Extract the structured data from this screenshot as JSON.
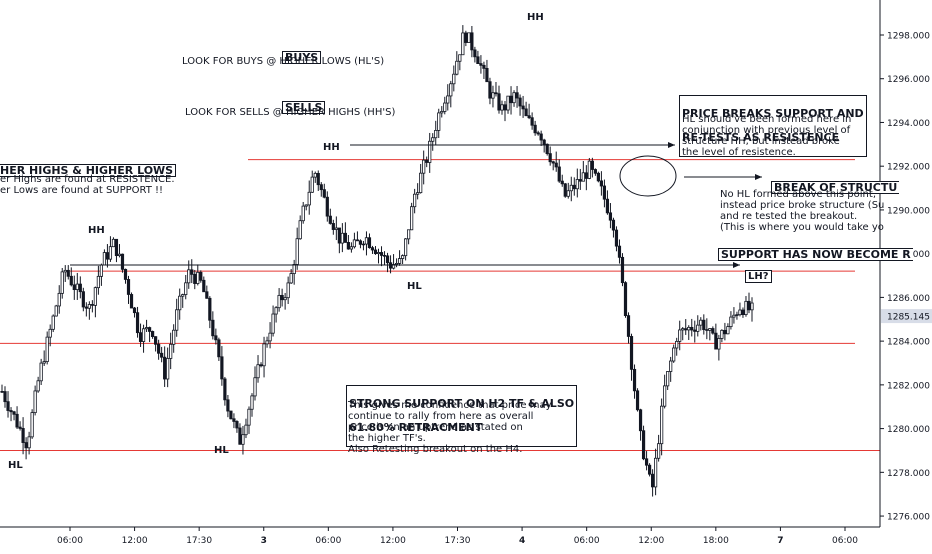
{
  "chart_data": {
    "type": "candlestick",
    "y_axis": {
      "range": [
        1275.5,
        1299.6
      ],
      "ticks": [
        1276,
        1278,
        1280,
        1282,
        1284,
        1286,
        1288,
        1290,
        1292,
        1294,
        1296,
        1298
      ],
      "tick_labels": [
        "1276.000",
        "1278.000",
        "1280.000",
        "1282.000",
        "1284.000",
        "1286.000",
        "1288.000",
        "1290.000",
        "1292.000",
        "1294.000",
        "1296.000",
        "1298.000"
      ],
      "last_price": "1285.145",
      "position": "right"
    },
    "x_axis": {
      "tick_labels": [
        "06:00",
        "12:00",
        "17:30",
        "3",
        "06:00",
        "12:00",
        "17:30",
        "4",
        "06:00",
        "12:00",
        "18:00",
        "7",
        "06:00"
      ]
    },
    "grid": false,
    "horizontal_lines": [
      {
        "price": 1292.3,
        "color": "#e53935"
      },
      {
        "price": 1287.2,
        "color": "#e53935"
      },
      {
        "price": 1283.9,
        "color": "#e53935"
      },
      {
        "price": 1279.0,
        "color": "#e53935"
      }
    ],
    "series_path": [
      1281.7,
      1280.5,
      1279.3,
      1282.5,
      1284.8,
      1287.3,
      1286.3,
      1285.5,
      1287.6,
      1288.5,
      1286.6,
      1284.3,
      1284.6,
      1282.5,
      1285.3,
      1287.2,
      1286.6,
      1284.1,
      1281.1,
      1279.4,
      1281.5,
      1283.8,
      1285.6,
      1286.6,
      1289.7,
      1291.8,
      1290.1,
      1288.7,
      1288.2,
      1288.8,
      1288.2,
      1287.5,
      1287.6,
      1290.7,
      1292.4,
      1294.5,
      1296.1,
      1298.1,
      1297.1,
      1295.4,
      1294.6,
      1295.2,
      1294.1,
      1293.6,
      1292.3,
      1290.6,
      1291.2,
      1291.9,
      1290.8,
      1289.3,
      1284.9,
      1279.8,
      1277.1,
      1281.8,
      1284.3,
      1284.6,
      1284.9,
      1283.9,
      1284.6,
      1285.6,
      1285.4
    ]
  },
  "annotations": {
    "hh_top": "HH",
    "hh_mid": "HH",
    "hh_left": "HH",
    "hl_left": "HL",
    "hl_mid1": "HL",
    "hl_mid2": "HL",
    "lh": "LH?",
    "buys_title": "BUYS",
    "buys_text": "LOOK FOR BUYS @ HIGHER LOWS (HL'S)",
    "sells_title": "SELLS",
    "sells_text": "LOOK FOR SELLS @ HIGHER HIGHS (HH'S)",
    "hhhl_title": "HER HIGHS & HIGHER LOWS",
    "hhhl_line1": "er Highs are found at RESISTENCE.",
    "hhhl_line2": "er Lows are found at SUPPORT !!",
    "breaks_title_1": "PRICE BREAKS SUPPORT AND",
    "breaks_title_2": "RE-TESTS AS RESISTENCE",
    "breaks_text": "HL should've been formed here in\nconjunction with previous level of\nstructure HH, but instead broke\nthe level of resistence.",
    "bos_title": "BREAK OF STRUCTU",
    "bos_text": "No HL formed above this point,\ninstead price broke structure (Su\nand re tested the breakout.\n(This is where you would take yo",
    "support_resist": "SUPPORT HAS NOW BECOME R",
    "strong_title_1": "STRONG SUPPORT ON H2 TF & ALSO",
    "strong_title_2": "61.80% RETRACMENT",
    "strong_text": "This gives me confidence that price may\ncontinue to rally from here as overall\nprice is on an uptrend as stated on\nthe higher TF's.\nAlso Retesting breakout on the H4."
  },
  "colors": {
    "candle": "#131722",
    "level_line": "#e53935",
    "axis_text": "#131722",
    "last_price_bg": "#d8dde8"
  }
}
